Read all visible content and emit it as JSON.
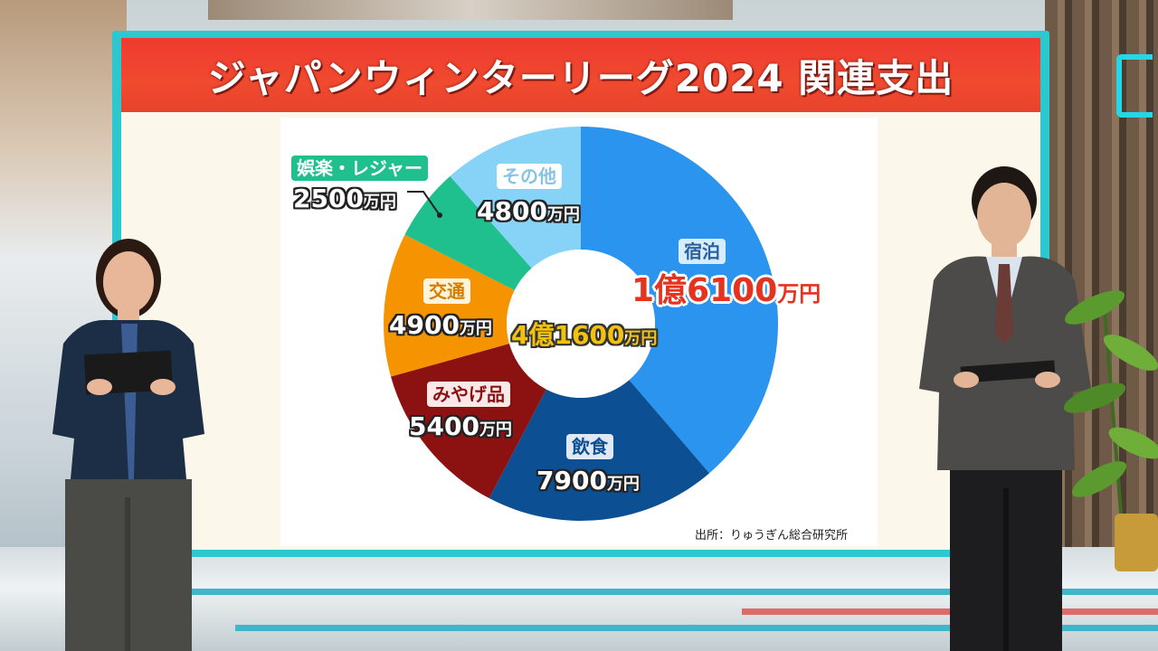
{
  "title": "ジャパンウィンターリーグ2024 関連支出",
  "source": "出所：りゅうぎん総合研究所",
  "total": {
    "number": "4億1600",
    "unit": "万円"
  },
  "colors": {
    "title_bar": "#ef3a30",
    "accommodation": "#2a94ee",
    "food": "#0d4f93",
    "souvenirs": "#8c1111",
    "transport": "#f59400",
    "leisure": "#1fc08d",
    "other": "#86d3f7",
    "total_text": "#f3c20f",
    "highlight_text": "#e5331f"
  },
  "chart_data": {
    "type": "pie",
    "style": "donut",
    "unit": "万円",
    "categories": [
      "宿泊",
      "飲食",
      "みやげ品",
      "交通",
      "娯楽・レジャー",
      "その他"
    ],
    "values": [
      16100,
      7900,
      5400,
      4900,
      2500,
      4800
    ],
    "labels": [
      {
        "name": "宿泊",
        "number": "1億6100",
        "unit": "万円"
      },
      {
        "name": "飲食",
        "number": "7900",
        "unit": "万円"
      },
      {
        "name": "みやげ品",
        "number": "5400",
        "unit": "万円"
      },
      {
        "name": "交通",
        "number": "4900",
        "unit": "万円"
      },
      {
        "name": "娯楽・レジャー",
        "number": "2500",
        "unit": "万円"
      },
      {
        "name": "その他",
        "number": "4800",
        "unit": "万円"
      }
    ],
    "start": "12 o'clock",
    "direction": "clockwise"
  }
}
